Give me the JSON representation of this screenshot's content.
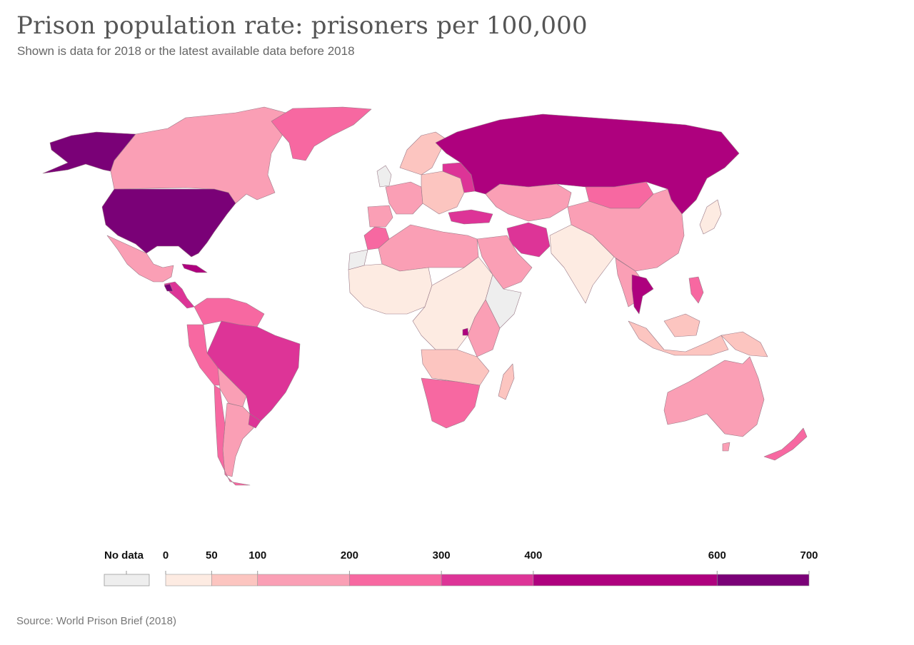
{
  "header": {
    "title": "Prison population rate: prisoners per 100,000",
    "subtitle": "Shown is data for 2018 or the latest available data before 2018"
  },
  "legend": {
    "no_data_label": "No data",
    "no_data_color": "#eeeeee",
    "ticks": [
      "0",
      "50",
      "100",
      "200",
      "300",
      "400",
      "600",
      "700"
    ],
    "bins": [
      {
        "from": 0,
        "to": 50,
        "color": "#fdebe2"
      },
      {
        "from": 50,
        "to": 100,
        "color": "#fcc5c0"
      },
      {
        "from": 100,
        "to": 200,
        "color": "#fa9fb5"
      },
      {
        "from": 200,
        "to": 300,
        "color": "#f768a1"
      },
      {
        "from": 300,
        "to": 400,
        "color": "#dd3497"
      },
      {
        "from": 400,
        "to": 600,
        "color": "#ae017e"
      },
      {
        "from": 600,
        "to": 700,
        "color": "#7a0177"
      }
    ]
  },
  "footer": {
    "source": "Source: World Prison Brief (2018)"
  }
}
